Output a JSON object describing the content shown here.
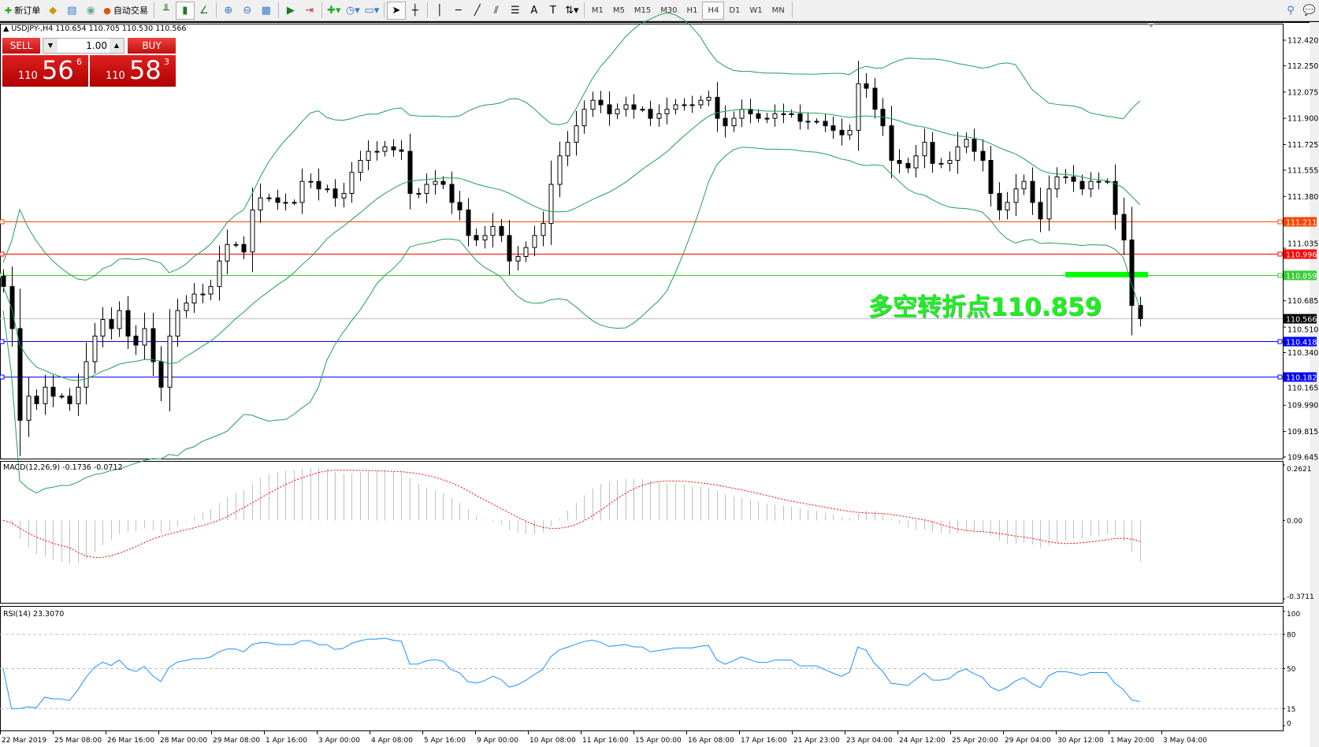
{
  "toolbar": {
    "new_order": "新订单",
    "auto_trading": "自动交易",
    "timeframes": [
      "M1",
      "M5",
      "M15",
      "M30",
      "H1",
      "H4",
      "D1",
      "W1",
      "MN"
    ],
    "active_timeframe": "H4",
    "icons": [
      "new-order-icon",
      "market-watch-icon",
      "navigator-icon",
      "signals-icon",
      "auto-trading-icon",
      "bar-chart-icon",
      "candlestick-icon",
      "line-chart-icon",
      "zoom-in-icon",
      "zoom-out-icon",
      "tile-windows-icon",
      "autoscroll-icon",
      "chart-shift-icon",
      "indicators-icon",
      "periods-icon",
      "templates-icon",
      "cursor-icon",
      "crosshair-icon",
      "vertical-line-icon",
      "horizontal-line-icon",
      "trendline-icon",
      "equidistant-channel-icon",
      "fibonacci-icon",
      "text-icon",
      "text-label-icon",
      "arrows-icon",
      "search-icon",
      "chat-icon"
    ]
  },
  "chart": {
    "header": "USDJPY-,H4  110.654 110.705 110.530 110.566",
    "trade_panel": {
      "sell_label": "SELL",
      "buy_label": "BUY",
      "lot": "1.00",
      "sell_price": {
        "big_prefix": "110",
        "main": "56",
        "sup": "6"
      },
      "buy_price": {
        "big_prefix": "110",
        "main": "58",
        "sup": "3"
      }
    },
    "annotation": "多空转折点110.859",
    "annotation_color": "#1ef01e",
    "colors": {
      "bull": "#ffffff",
      "bear": "#000000",
      "bands": "#20a050",
      "macd_hist": "#c0c0c0",
      "macd_signal": "#ff0000",
      "rsi": "#1e90ff"
    }
  },
  "chart_data": {
    "type": "candlestick",
    "symbol": "USDJPY-",
    "timeframe": "H4",
    "ylim": [
      109.645,
      112.42
    ],
    "price_ticks": [
      "112.420",
      "112.250",
      "112.075",
      "111.900",
      "111.725",
      "111.555",
      "111.380",
      "111.035",
      "110.685",
      "110.510",
      "110.340",
      "110.165",
      "109.990",
      "109.815",
      "109.645"
    ],
    "closes": [
      110.78,
      110.5,
      109.89,
      110.05,
      110.0,
      110.11,
      110.05,
      110.05,
      110.0,
      110.11,
      110.28,
      110.45,
      110.56,
      110.5,
      110.62,
      110.45,
      110.39,
      110.5,
      110.28,
      110.11,
      110.45,
      110.62,
      110.67,
      110.73,
      110.73,
      110.78,
      110.95,
      111.06,
      111.06,
      111.01,
      111.29,
      111.37,
      111.37,
      111.34,
      111.34,
      111.34,
      111.48,
      111.48,
      111.43,
      111.43,
      111.37,
      111.4,
      111.54,
      111.62,
      111.68,
      111.68,
      111.71,
      111.69,
      111.68,
      111.4,
      111.4,
      111.46,
      111.48,
      111.46,
      111.34,
      111.29,
      111.12,
      111.09,
      111.12,
      111.18,
      111.12,
      110.95,
      110.98,
      111.04,
      111.12,
      111.2,
      111.46,
      111.65,
      111.74,
      111.85,
      111.96,
      112.02,
      111.99,
      111.93,
      111.96,
      111.99,
      111.96,
      111.96,
      111.9,
      111.93,
      111.96,
      111.99,
      111.99,
      111.99,
      112.02,
      112.04,
      111.9,
      111.85,
      111.9,
      111.96,
      111.93,
      111.9,
      111.9,
      111.93,
      111.93,
      111.93,
      111.88,
      111.88,
      111.88,
      111.85,
      111.82,
      111.79,
      111.82,
      112.13,
      112.1,
      111.96,
      111.85,
      111.62,
      111.6,
      111.57,
      111.65,
      111.74,
      111.6,
      111.6,
      111.62,
      111.71,
      111.76,
      111.68,
      111.62,
      111.4,
      111.29,
      111.34,
      111.43,
      111.48,
      111.34,
      111.23,
      111.43,
      111.51,
      111.51,
      111.48,
      111.43,
      111.48,
      111.48,
      111.48,
      111.26,
      111.09,
      110.654,
      110.566
    ],
    "levels": [
      {
        "price": "111.211",
        "color": "#ff4500"
      },
      {
        "price": "110.996",
        "color": "#ff0000"
      },
      {
        "price": "110.859",
        "color": "#33cc33"
      },
      {
        "price": "110.566",
        "color": "#000000",
        "bid": true
      },
      {
        "price": "110.418",
        "color": "#0000ff"
      },
      {
        "price": "110.182",
        "color": "#0000ff"
      }
    ],
    "x_ticks": [
      "22 Mar 2019",
      "25 Mar 08:00",
      "26 Mar 16:00",
      "28 Mar 00:00",
      "29 Mar 08:00",
      "1 Apr 16:00",
      "3 Apr 00:00",
      "4 Apr 08:00",
      "5 Apr 16:00",
      "9 Apr 00:00",
      "10 Apr 08:00",
      "11 Apr 16:00",
      "15 Apr 00:00",
      "16 Apr 08:00",
      "17 Apr 16:00",
      "21 Apr 23:00",
      "23 Apr 04:00",
      "24 Apr 12:00",
      "25 Apr 20:00",
      "29 Apr 04:00",
      "30 Apr 12:00",
      "1 May 20:00",
      "3 May 04:00"
    ],
    "bollinger": {
      "period": 20,
      "deviation": 2
    },
    "macd": {
      "label": "MACD(12,26,9) -0.1736 -0.0712",
      "ylim": [
        -0.3711,
        0.2621
      ],
      "ticks": [
        "0.2621",
        "0.00",
        "-0.3711"
      ]
    },
    "rsi": {
      "label": "RSI(14) 23.3070",
      "ylim": [
        0,
        100
      ],
      "ticks": [
        "100",
        "80",
        "50",
        "15",
        "0"
      ],
      "levels": [
        80,
        50,
        15
      ]
    }
  }
}
